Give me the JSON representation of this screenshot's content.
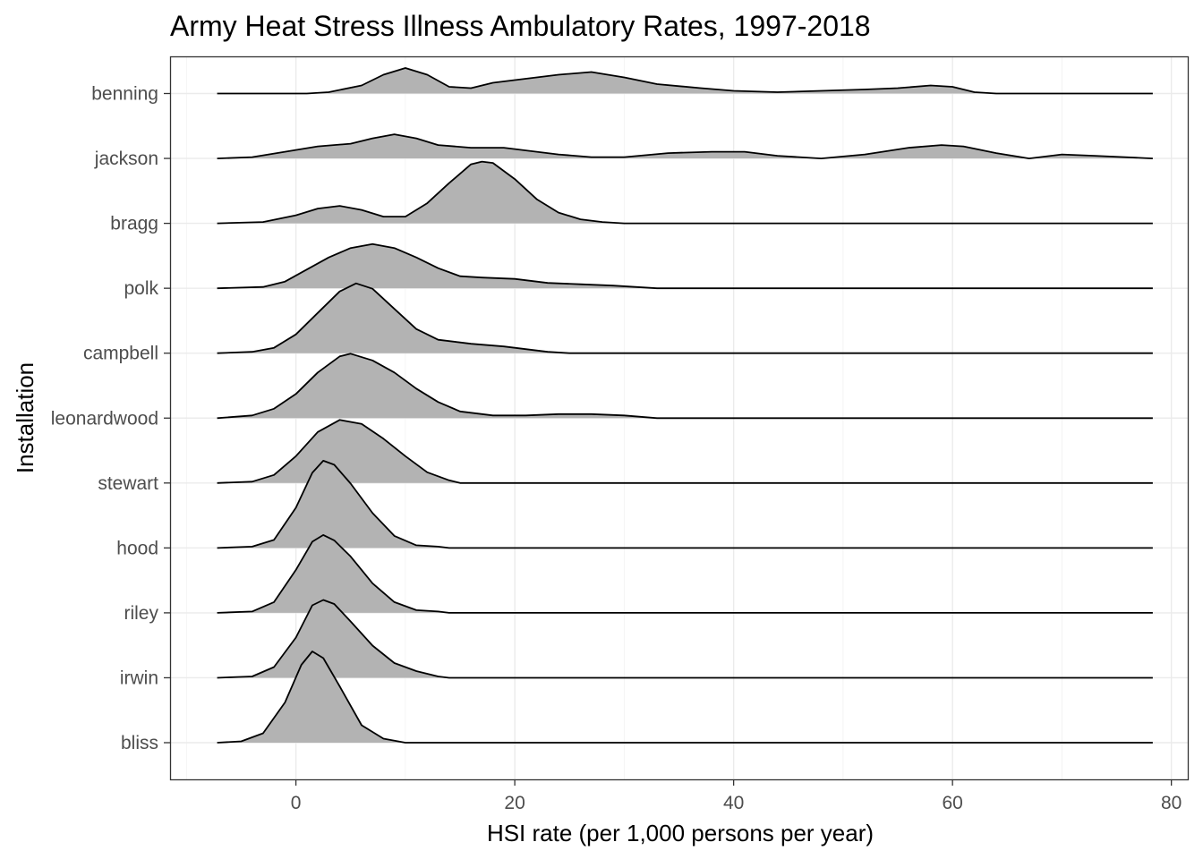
{
  "chart_data": {
    "type": "ridgeline",
    "title": "Army Heat Stress Illness Ambulatory Rates, 1997-2018",
    "xlabel": "HSI rate (per 1,000 persons per year)",
    "ylabel": "Installation",
    "xlim": [
      -11.5,
      81.5
    ],
    "x_ticks": [
      0,
      20,
      40,
      60,
      80
    ],
    "x_tick_labels": [
      "0",
      "20",
      "40",
      "60",
      "80"
    ],
    "x_range_drawn": [
      -7.2,
      78.3
    ],
    "grid": true,
    "fill_color": "#b3b3b3",
    "line_color": "#000000",
    "categories": [
      "bliss",
      "irwin",
      "riley",
      "hood",
      "stewart",
      "leonardwood",
      "campbell",
      "polk",
      "bragg",
      "jackson",
      "benning"
    ],
    "series": [
      {
        "name": "benning",
        "points": [
          [
            -7.2,
            0
          ],
          [
            1,
            0
          ],
          [
            3,
            0.01
          ],
          [
            6,
            0.06
          ],
          [
            8,
            0.14
          ],
          [
            10,
            0.19
          ],
          [
            12,
            0.14
          ],
          [
            14,
            0.05
          ],
          [
            16,
            0.04
          ],
          [
            18,
            0.08
          ],
          [
            21,
            0.11
          ],
          [
            24,
            0.14
          ],
          [
            27,
            0.16
          ],
          [
            30,
            0.12
          ],
          [
            33,
            0.07
          ],
          [
            37,
            0.04
          ],
          [
            40,
            0.02
          ],
          [
            44,
            0.01
          ],
          [
            48,
            0.02
          ],
          [
            52,
            0.03
          ],
          [
            55,
            0.04
          ],
          [
            58,
            0.06
          ],
          [
            60,
            0.05
          ],
          [
            62,
            0.01
          ],
          [
            64,
            0
          ],
          [
            78.3,
            0
          ]
        ]
      },
      {
        "name": "jackson",
        "points": [
          [
            -7.2,
            0
          ],
          [
            -4,
            0.01
          ],
          [
            -1,
            0.05
          ],
          [
            2,
            0.09
          ],
          [
            5,
            0.11
          ],
          [
            7,
            0.15
          ],
          [
            9,
            0.18
          ],
          [
            11,
            0.15
          ],
          [
            13,
            0.1
          ],
          [
            16,
            0.08
          ],
          [
            19,
            0.08
          ],
          [
            21,
            0.06
          ],
          [
            24,
            0.03
          ],
          [
            27,
            0.01
          ],
          [
            30,
            0.01
          ],
          [
            34,
            0.04
          ],
          [
            38,
            0.05
          ],
          [
            41,
            0.05
          ],
          [
            44,
            0.02
          ],
          [
            48,
            0.0
          ],
          [
            52,
            0.03
          ],
          [
            56,
            0.08
          ],
          [
            59,
            0.1
          ],
          [
            61,
            0.09
          ],
          [
            64,
            0.04
          ],
          [
            67,
            0.0
          ],
          [
            70,
            0.03
          ],
          [
            73,
            0.02
          ],
          [
            78.3,
            0
          ]
        ]
      },
      {
        "name": "bragg",
        "points": [
          [
            -7.2,
            0
          ],
          [
            -3,
            0.01
          ],
          [
            0,
            0.06
          ],
          [
            2,
            0.11
          ],
          [
            4,
            0.13
          ],
          [
            6,
            0.1
          ],
          [
            8,
            0.05
          ],
          [
            10,
            0.05
          ],
          [
            12,
            0.15
          ],
          [
            14,
            0.3
          ],
          [
            16,
            0.44
          ],
          [
            17,
            0.46
          ],
          [
            18,
            0.45
          ],
          [
            20,
            0.33
          ],
          [
            22,
            0.18
          ],
          [
            24,
            0.08
          ],
          [
            26,
            0.03
          ],
          [
            28,
            0.01
          ],
          [
            30,
            0
          ],
          [
            78.3,
            0
          ]
        ]
      },
      {
        "name": "polk",
        "points": [
          [
            -7.2,
            0
          ],
          [
            -3,
            0.01
          ],
          [
            -1,
            0.05
          ],
          [
            1,
            0.14
          ],
          [
            3,
            0.23
          ],
          [
            5,
            0.3
          ],
          [
            7,
            0.33
          ],
          [
            9,
            0.3
          ],
          [
            11,
            0.23
          ],
          [
            13,
            0.15
          ],
          [
            15,
            0.09
          ],
          [
            17,
            0.08
          ],
          [
            20,
            0.07
          ],
          [
            23,
            0.04
          ],
          [
            26,
            0.03
          ],
          [
            29,
            0.02
          ],
          [
            31,
            0.01
          ],
          [
            33,
            0
          ],
          [
            78.3,
            0
          ]
        ]
      },
      {
        "name": "campbell",
        "points": [
          [
            -7.2,
            0
          ],
          [
            -4,
            0.01
          ],
          [
            -2,
            0.04
          ],
          [
            0,
            0.14
          ],
          [
            2,
            0.3
          ],
          [
            4,
            0.46
          ],
          [
            5.5,
            0.52
          ],
          [
            7,
            0.48
          ],
          [
            9,
            0.33
          ],
          [
            11,
            0.18
          ],
          [
            13,
            0.1
          ],
          [
            16,
            0.07
          ],
          [
            19,
            0.05
          ],
          [
            21,
            0.03
          ],
          [
            23,
            0.01
          ],
          [
            25,
            0
          ],
          [
            78.3,
            0
          ]
        ]
      },
      {
        "name": "leonardwood",
        "points": [
          [
            -7.2,
            0
          ],
          [
            -4,
            0.02
          ],
          [
            -2,
            0.07
          ],
          [
            0,
            0.18
          ],
          [
            2,
            0.34
          ],
          [
            4,
            0.46
          ],
          [
            5,
            0.48
          ],
          [
            7,
            0.43
          ],
          [
            9,
            0.34
          ],
          [
            11,
            0.22
          ],
          [
            13,
            0.12
          ],
          [
            15,
            0.05
          ],
          [
            18,
            0.02
          ],
          [
            21,
            0.02
          ],
          [
            24,
            0.03
          ],
          [
            27,
            0.03
          ],
          [
            30,
            0.02
          ],
          [
            33,
            0
          ],
          [
            78.3,
            0
          ]
        ]
      },
      {
        "name": "stewart",
        "points": [
          [
            -7.2,
            0
          ],
          [
            -4,
            0.01
          ],
          [
            -2,
            0.06
          ],
          [
            0,
            0.2
          ],
          [
            2,
            0.38
          ],
          [
            4,
            0.47
          ],
          [
            6,
            0.44
          ],
          [
            8,
            0.33
          ],
          [
            10,
            0.2
          ],
          [
            12,
            0.08
          ],
          [
            14,
            0.02
          ],
          [
            15,
            0
          ],
          [
            78.3,
            0
          ]
        ]
      },
      {
        "name": "hood",
        "points": [
          [
            -7.2,
            0
          ],
          [
            -4,
            0.01
          ],
          [
            -2,
            0.06
          ],
          [
            0,
            0.3
          ],
          [
            1.5,
            0.56
          ],
          [
            2.5,
            0.65
          ],
          [
            3.5,
            0.62
          ],
          [
            5,
            0.48
          ],
          [
            7,
            0.26
          ],
          [
            9,
            0.09
          ],
          [
            11,
            0.02
          ],
          [
            13,
            0.01
          ],
          [
            14,
            0
          ],
          [
            78.3,
            0
          ]
        ]
      },
      {
        "name": "riley",
        "points": [
          [
            -7.2,
            0
          ],
          [
            -4,
            0.01
          ],
          [
            -2,
            0.08
          ],
          [
            0,
            0.32
          ],
          [
            1.5,
            0.53
          ],
          [
            2.5,
            0.58
          ],
          [
            3.5,
            0.54
          ],
          [
            5,
            0.42
          ],
          [
            7,
            0.22
          ],
          [
            9,
            0.08
          ],
          [
            11,
            0.02
          ],
          [
            13,
            0.01
          ],
          [
            14,
            0
          ],
          [
            78.3,
            0
          ]
        ]
      },
      {
        "name": "irwin",
        "points": [
          [
            -7.2,
            0
          ],
          [
            -4,
            0.01
          ],
          [
            -2,
            0.08
          ],
          [
            0,
            0.3
          ],
          [
            1.5,
            0.54
          ],
          [
            2.5,
            0.58
          ],
          [
            3.5,
            0.55
          ],
          [
            5,
            0.42
          ],
          [
            7,
            0.24
          ],
          [
            9,
            0.11
          ],
          [
            11,
            0.05
          ],
          [
            13,
            0.01
          ],
          [
            14,
            0
          ],
          [
            78.3,
            0
          ]
        ]
      },
      {
        "name": "bliss",
        "points": [
          [
            -7.2,
            0
          ],
          [
            -5,
            0.01
          ],
          [
            -3,
            0.07
          ],
          [
            -1,
            0.3
          ],
          [
            0.5,
            0.58
          ],
          [
            1.5,
            0.68
          ],
          [
            2.5,
            0.63
          ],
          [
            4,
            0.42
          ],
          [
            6,
            0.13
          ],
          [
            8,
            0.03
          ],
          [
            10,
            0
          ],
          [
            78.3,
            0
          ]
        ]
      }
    ]
  }
}
